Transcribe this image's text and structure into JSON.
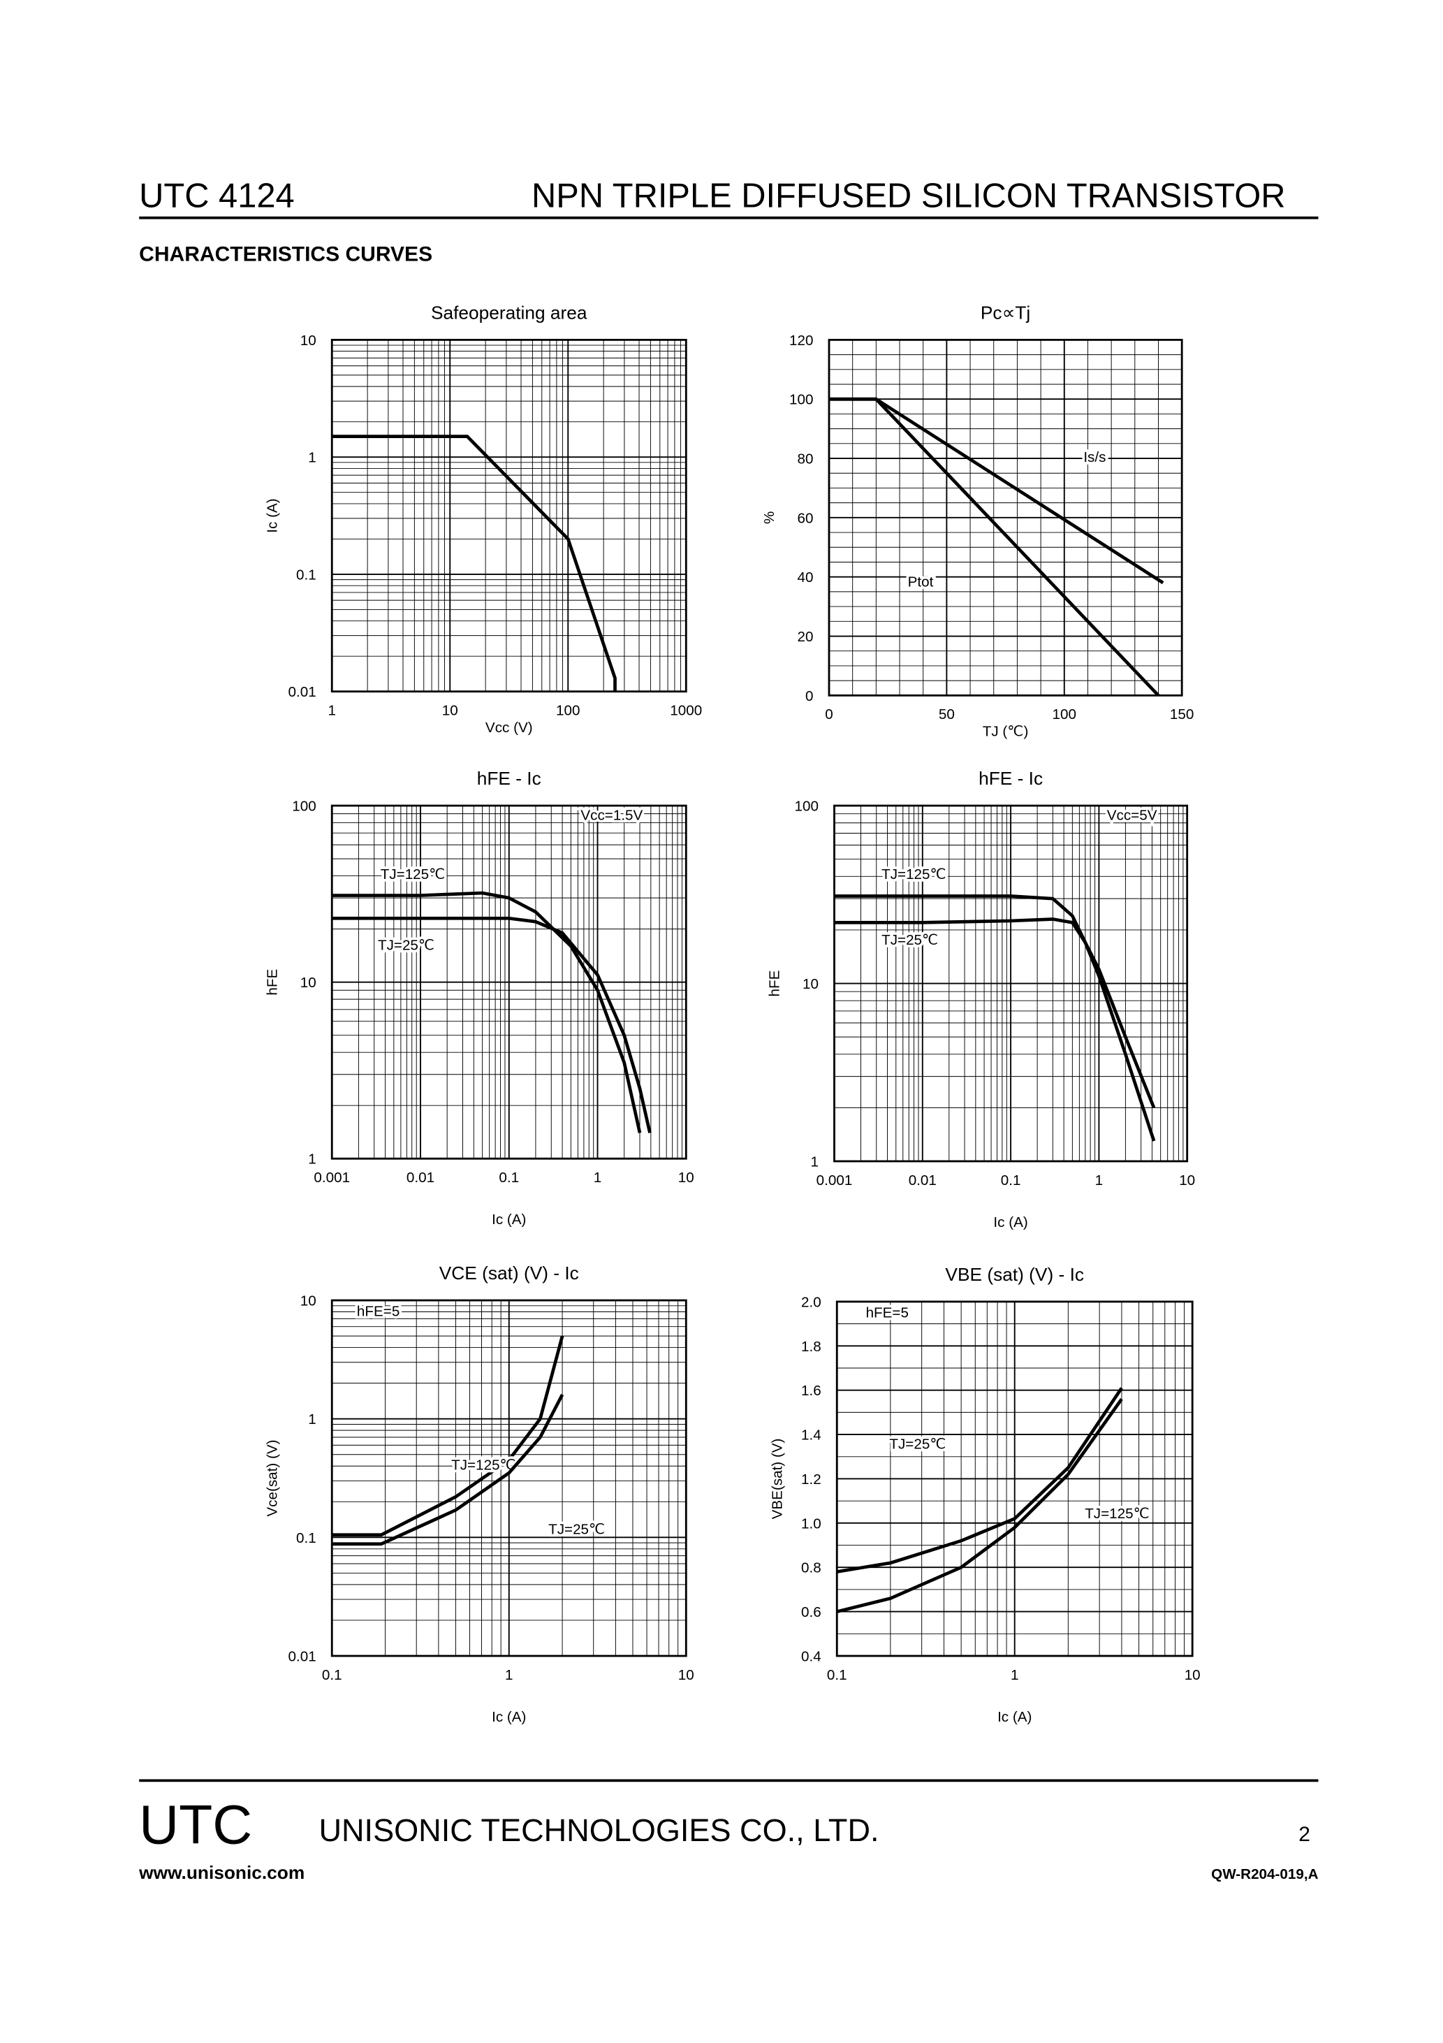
{
  "header": {
    "part": "UTC 4124",
    "title": "NPN TRIPLE DIFFUSED SILICON TRANSISTOR"
  },
  "section_title": "CHARACTERISTICS CURVES",
  "chart_data": [
    {
      "type": "line",
      "title": "Safeoperating area",
      "x_label": "Vcc (V)",
      "y_label": "Ic (A)",
      "xlog": true,
      "ylog": true,
      "grid": true,
      "xlim": [
        1,
        1000
      ],
      "ylim": [
        0.01,
        10
      ],
      "xticks": [
        1,
        10,
        100,
        1000
      ],
      "yticks": [
        0.01,
        0.1,
        1,
        10
      ],
      "series": [
        {
          "color": "#000000",
          "x": [
            1,
            14,
            100,
            250,
            250
          ],
          "values": [
            1.5,
            1.5,
            0.2,
            0.013,
            0.01
          ]
        }
      ]
    },
    {
      "type": "line",
      "title": "Pc∝Tj",
      "x_label": "TJ (℃)",
      "y_label": "%",
      "xlog": false,
      "ylog": false,
      "grid": true,
      "xlim": [
        0,
        150
      ],
      "ylim": [
        0,
        120
      ],
      "xticks": [
        0,
        50,
        100,
        150
      ],
      "yticks": [
        0,
        20,
        40,
        60,
        80,
        100,
        120
      ],
      "series": [
        {
          "name": "Is/s",
          "color": "#000000",
          "x": [
            0,
            20,
            142
          ],
          "values": [
            100,
            100,
            38
          ]
        },
        {
          "name": "Ptot",
          "color": "#000000",
          "x": [
            0,
            20,
            140
          ],
          "values": [
            100,
            100,
            0
          ]
        }
      ]
    },
    {
      "type": "line",
      "title": "hFE - Ic",
      "x_label": "Ic (A)",
      "y_label": "hFE",
      "xlog": true,
      "ylog": true,
      "grid": true,
      "xlim": [
        0.001,
        10
      ],
      "ylim": [
        1,
        100
      ],
      "xticks": [
        0.001,
        0.01,
        0.1,
        1,
        10
      ],
      "yticks": [
        1,
        10,
        100
      ],
      "annotations": [
        "Vcc=1.5V"
      ],
      "series": [
        {
          "name": "TJ=125℃",
          "color": "#000000",
          "x": [
            0.001,
            0.01,
            0.05,
            0.1,
            0.2,
            0.5,
            1,
            2,
            3
          ],
          "values": [
            31,
            31,
            32,
            30,
            25,
            16,
            9,
            3.5,
            1.4
          ]
        },
        {
          "name": "TJ=25℃",
          "color": "#000000",
          "x": [
            0.001,
            0.1,
            0.2,
            0.4,
            1,
            2,
            3,
            3.9
          ],
          "values": [
            23,
            23,
            22,
            19,
            11,
            5,
            2.5,
            1.4
          ]
        }
      ]
    },
    {
      "type": "line",
      "title": "hFE - Ic",
      "x_label": "Ic (A)",
      "y_label": "hFE",
      "xlog": true,
      "ylog": true,
      "grid": true,
      "xlim": [
        0.001,
        10
      ],
      "ylim": [
        1,
        100
      ],
      "xticks": [
        0.001,
        0.01,
        0.1,
        1,
        10
      ],
      "yticks": [
        1,
        10,
        100
      ],
      "annotations": [
        "Vcc=5V"
      ],
      "series": [
        {
          "name": "TJ=125℃",
          "color": "#000000",
          "x": [
            0.001,
            0.01,
            0.1,
            0.3,
            0.5,
            0.7,
            1,
            2,
            4.2
          ],
          "values": [
            31,
            31,
            31,
            30,
            24,
            17,
            11,
            4,
            1.3
          ]
        },
        {
          "name": "TJ=25℃",
          "color": "#000000",
          "x": [
            0.001,
            0.01,
            0.1,
            0.3,
            0.5,
            0.7,
            1,
            2,
            4.2
          ],
          "values": [
            22,
            22,
            22.5,
            23,
            22,
            17,
            12,
            5,
            2
          ]
        }
      ]
    },
    {
      "type": "line",
      "title": "VCE (sat) (V) - Ic",
      "x_label": "Ic (A)",
      "y_label": "Vce(sat) (V)",
      "xlog": true,
      "ylog": true,
      "grid": true,
      "xlim": [
        0.1,
        10
      ],
      "ylim": [
        0.01,
        10
      ],
      "xticks": [
        0.1,
        1,
        10
      ],
      "yticks": [
        0.01,
        0.1,
        1,
        10
      ],
      "annotations": [
        "hFE=5"
      ],
      "series": [
        {
          "name": "TJ=125℃",
          "color": "#000000",
          "x": [
            0.1,
            0.19,
            0.5,
            1,
            1.5,
            2
          ],
          "values": [
            0.105,
            0.105,
            0.22,
            0.45,
            1,
            5
          ]
        },
        {
          "name": "TJ=25℃",
          "color": "#000000",
          "x": [
            0.1,
            0.19,
            0.5,
            1,
            1.5,
            2
          ],
          "values": [
            0.088,
            0.088,
            0.17,
            0.35,
            0.7,
            1.6
          ]
        }
      ]
    },
    {
      "type": "line",
      "title": "VBE (sat) (V) - Ic",
      "x_label": "Ic (A)",
      "y_label": "VBE(sat) (V)",
      "xlog": true,
      "ylog": false,
      "grid": true,
      "xlim": [
        0.1,
        10
      ],
      "ylim": [
        0.4,
        2
      ],
      "xticks": [
        0.1,
        1,
        10
      ],
      "yticks": [
        0.4,
        0.6,
        0.8,
        {
          "value": 1,
          "label": "1.0"
        },
        1.2,
        1.4,
        1.6,
        1.8,
        {
          "value": 2,
          "label": "2.0"
        }
      ],
      "annotations": [
        "hFE=5"
      ],
      "series": [
        {
          "name": "TJ=25℃",
          "color": "#000000",
          "x": [
            0.1,
            0.2,
            0.5,
            1,
            2,
            4
          ],
          "values": [
            0.78,
            0.82,
            0.92,
            1.02,
            1.25,
            1.61
          ]
        },
        {
          "name": "TJ=125℃",
          "color": "#000000",
          "x": [
            0.1,
            0.2,
            0.5,
            1,
            2,
            4
          ],
          "values": [
            0.6,
            0.66,
            0.8,
            0.98,
            1.22,
            1.56
          ]
        }
      ]
    }
  ],
  "footer": {
    "logo": "UTC",
    "company": "UNISONIC TECHNOLOGIES CO., LTD.",
    "page": "2",
    "website": "www.unisonic.com",
    "doc_code": "QW-R204-019,A"
  }
}
